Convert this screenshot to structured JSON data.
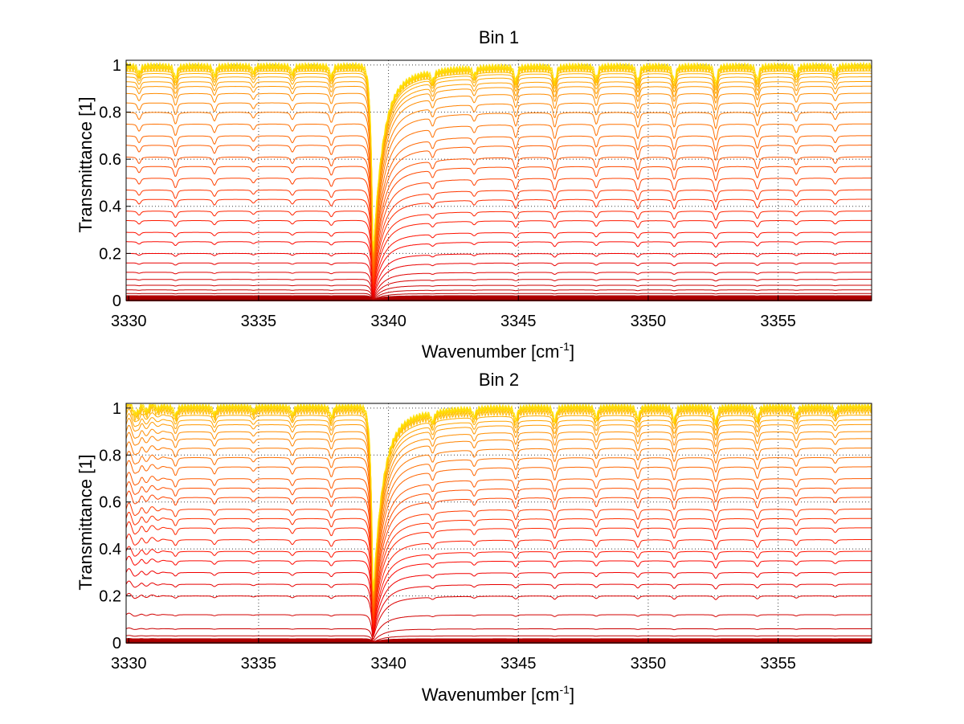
{
  "chart_data": [
    {
      "type": "line",
      "title": "Bin 1",
      "xlabel": "Wavenumber [cm",
      "xlabel_sup": "-1",
      "xlabel_end": "]",
      "ylabel": "Transmittance [1]",
      "xlim": [
        3329.9,
        3358.6
      ],
      "ylim": [
        0,
        1.02
      ],
      "grid": true,
      "xticks": [
        3330,
        3335,
        3340,
        3345,
        3350,
        3355
      ],
      "yticks": [
        0,
        0.2,
        0.4,
        0.6,
        0.8,
        1
      ],
      "ytick_labels": [
        "0",
        "0.2",
        "0.4",
        "0.6",
        "0.8",
        "1"
      ],
      "colormap": "autumn (dark red = low, yellow = high)",
      "series_baselines": [
        0.0,
        0.005,
        0.01,
        0.018,
        0.03,
        0.045,
        0.065,
        0.09,
        0.12,
        0.16,
        0.2,
        0.25,
        0.29,
        0.34,
        0.38,
        0.43,
        0.47,
        0.52,
        0.57,
        0.61,
        0.66,
        0.7,
        0.75,
        0.8,
        0.84,
        0.88,
        0.91,
        0.93,
        0.95,
        0.965,
        0.975,
        0.985,
        0.99,
        0.995,
        1.0
      ],
      "absorption_lines": [
        {
          "x": 3330.4,
          "depth": 0.05
        },
        {
          "x": 3331.8,
          "depth": 0.08
        },
        {
          "x": 3333.3,
          "depth": 0.06
        },
        {
          "x": 3334.8,
          "depth": 0.04
        },
        {
          "x": 3336.3,
          "depth": 0.05
        },
        {
          "x": 3337.8,
          "depth": 0.07
        },
        {
          "x": 3339.4,
          "depth": 0.9
        },
        {
          "x": 3341.7,
          "depth": 0.06
        },
        {
          "x": 3343.3,
          "depth": 0.05
        },
        {
          "x": 3344.9,
          "depth": 0.09
        },
        {
          "x": 3346.4,
          "depth": 0.1
        },
        {
          "x": 3348.0,
          "depth": 0.08
        },
        {
          "x": 3349.6,
          "depth": 0.1
        },
        {
          "x": 3351.0,
          "depth": 0.1
        },
        {
          "x": 3352.6,
          "depth": 0.11
        },
        {
          "x": 3354.2,
          "depth": 0.09
        },
        {
          "x": 3355.7,
          "depth": 0.06
        },
        {
          "x": 3357.2,
          "depth": 0.05
        }
      ]
    },
    {
      "type": "line",
      "title": "Bin 2",
      "xlabel": "Wavenumber [cm",
      "xlabel_sup": "-1",
      "xlabel_end": "]",
      "ylabel": "Transmittance [1]",
      "xlim": [
        3329.9,
        3358.6
      ],
      "ylim": [
        0,
        1.02
      ],
      "grid": true,
      "xticks": [
        3330,
        3335,
        3340,
        3345,
        3350,
        3355
      ],
      "yticks": [
        0,
        0.2,
        0.4,
        0.6,
        0.8,
        1
      ],
      "ytick_labels": [
        "0",
        "0.2",
        "0.4",
        "0.6",
        "0.8",
        "1"
      ],
      "colormap": "autumn (dark red = low, yellow = high)",
      "series_baselines": [
        0.0,
        0.005,
        0.01,
        0.015,
        0.03,
        0.06,
        0.12,
        0.2,
        0.25,
        0.3,
        0.35,
        0.39,
        0.44,
        0.49,
        0.53,
        0.57,
        0.62,
        0.66,
        0.7,
        0.75,
        0.79,
        0.83,
        0.87,
        0.9,
        0.93,
        0.95,
        0.97,
        0.985,
        0.995,
        1.0,
        1.005,
        1.01
      ],
      "absorption_lines": [
        {
          "x": 3330.4,
          "depth": 0.05
        },
        {
          "x": 3331.8,
          "depth": 0.06
        },
        {
          "x": 3333.3,
          "depth": 0.05
        },
        {
          "x": 3334.8,
          "depth": 0.03
        },
        {
          "x": 3336.3,
          "depth": 0.05
        },
        {
          "x": 3337.8,
          "depth": 0.07
        },
        {
          "x": 3339.4,
          "depth": 0.9
        },
        {
          "x": 3341.7,
          "depth": 0.06
        },
        {
          "x": 3343.3,
          "depth": 0.05
        },
        {
          "x": 3344.9,
          "depth": 0.08
        },
        {
          "x": 3346.4,
          "depth": 0.09
        },
        {
          "x": 3348.0,
          "depth": 0.07
        },
        {
          "x": 3349.6,
          "depth": 0.08
        },
        {
          "x": 3351.0,
          "depth": 0.09
        },
        {
          "x": 3352.6,
          "depth": 0.1
        },
        {
          "x": 3354.2,
          "depth": 0.08
        },
        {
          "x": 3355.7,
          "depth": 0.06
        },
        {
          "x": 3357.2,
          "depth": 0.04
        }
      ],
      "low_x_ripple": true
    }
  ]
}
